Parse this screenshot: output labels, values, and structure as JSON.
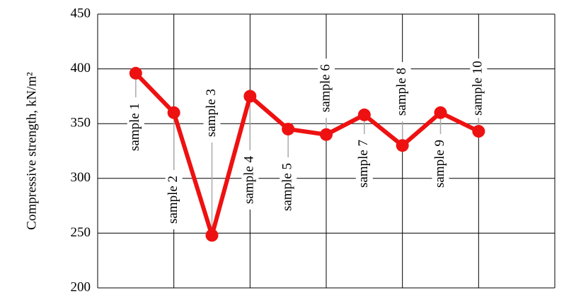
{
  "chart_data": {
    "type": "line",
    "y_label": "Compressive strength, kN/m²",
    "categories": [
      "sample 1",
      "sample 2",
      "sample 3",
      "sample 4",
      "sample 5",
      "sample 6",
      "sample 7",
      "sample 8",
      "sample 9",
      "sample 10"
    ],
    "values": [
      396,
      360,
      248,
      375,
      345,
      340,
      358,
      330,
      360,
      343
    ],
    "color": "#ee1111",
    "ylim": [
      200,
      450
    ],
    "yticks": [
      200,
      250,
      300,
      350,
      400,
      450
    ],
    "grid": true
  }
}
